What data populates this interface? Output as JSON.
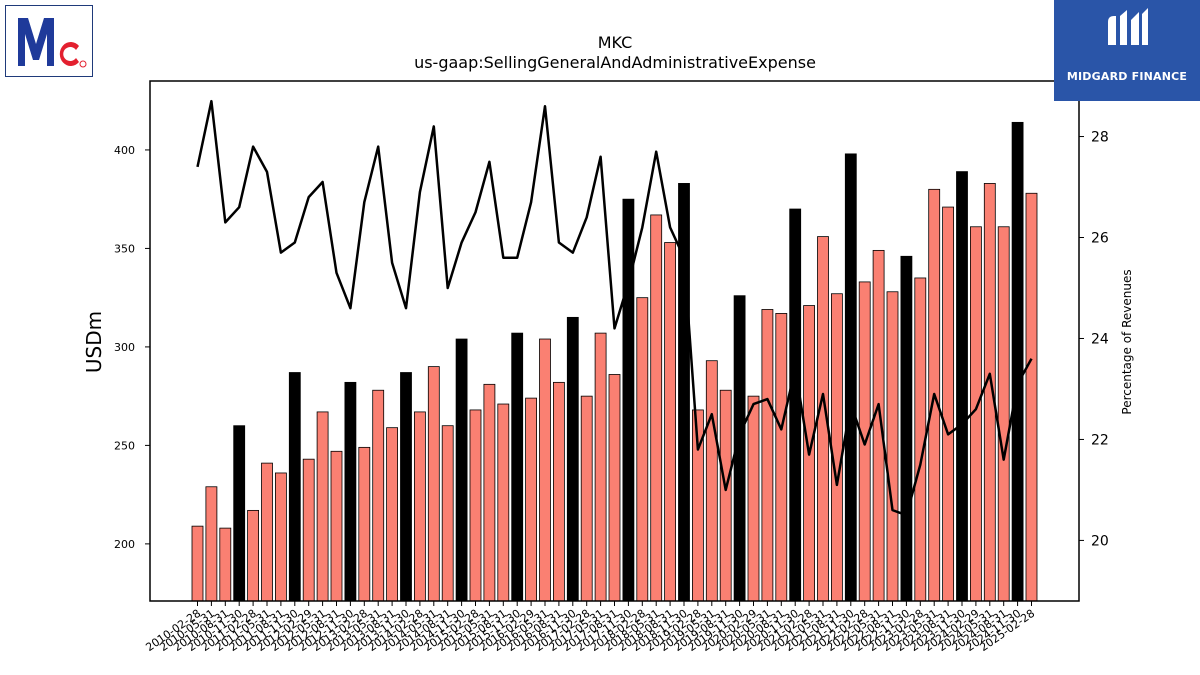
{
  "header": {
    "title": "MKC",
    "subtitle": "us-gaap:SellingGeneralAndAdministrativeExpense"
  },
  "branding": {
    "left_logo": "McCormick logo",
    "right_logo": "Midgard Finance logo",
    "right_name": "MIDGARD FINANCE"
  },
  "colors": {
    "bar_quarter": "#fa8072",
    "bar_fiscal_year": "#000000",
    "line": "#000000",
    "right_brand_bg": "#2a55a8"
  },
  "chart_data": {
    "type": "bar+line",
    "title": "MKC",
    "subtitle": "us-gaap:SellingGeneralAndAdministrativeExpense",
    "ylabel": "USDm",
    "y2label": "Percentage of Revenues",
    "ylim": [
      171,
      435
    ],
    "y2lim": [
      18.8,
      29.1
    ],
    "yticks": [
      200,
      250,
      300,
      350,
      400
    ],
    "y2ticks": [
      20,
      22,
      24,
      26,
      28
    ],
    "grid": false,
    "legend": "none",
    "categories": [
      "2010-02-28",
      "2010-05-31",
      "2010-08-31",
      "2010-11-30",
      "2011-02-28",
      "2011-05-31",
      "2011-08-31",
      "2011-11-30",
      "2012-02-29",
      "2012-05-31",
      "2012-08-31",
      "2012-11-30",
      "2013-02-28",
      "2013-05-31",
      "2013-08-31",
      "2013-11-30",
      "2014-02-28",
      "2014-05-31",
      "2014-08-31",
      "2014-11-30",
      "2015-02-28",
      "2015-05-31",
      "2015-08-31",
      "2015-11-30",
      "2016-02-29",
      "2016-05-31",
      "2016-08-31",
      "2016-11-30",
      "2017-02-28",
      "2017-05-31",
      "2017-08-31",
      "2017-11-30",
      "2018-02-28",
      "2018-05-31",
      "2018-08-31",
      "2018-11-30",
      "2019-02-28",
      "2019-05-31",
      "2019-08-31",
      "2019-11-30",
      "2020-02-29",
      "2020-05-31",
      "2020-08-31",
      "2020-11-30",
      "2021-02-28",
      "2021-05-31",
      "2021-08-31",
      "2021-11-30",
      "2022-02-28",
      "2022-05-31",
      "2022-08-31",
      "2022-11-30",
      "2023-02-28",
      "2023-05-31",
      "2023-08-31",
      "2023-11-30",
      "2024-02-29",
      "2024-05-31",
      "2024-08-31",
      "2024-11-30",
      "2025-02-28"
    ],
    "fiscal_year_flags": [
      0,
      0,
      0,
      1,
      0,
      0,
      0,
      1,
      0,
      0,
      0,
      1,
      0,
      0,
      0,
      1,
      0,
      0,
      0,
      1,
      0,
      0,
      0,
      1,
      0,
      0,
      0,
      1,
      0,
      0,
      0,
      1,
      0,
      0,
      0,
      1,
      0,
      0,
      0,
      1,
      0,
      0,
      0,
      1,
      0,
      0,
      0,
      1,
      0,
      0,
      0,
      1,
      0,
      0,
      0,
      1,
      0,
      0,
      0,
      1,
      0
    ],
    "series": [
      {
        "axis": "left",
        "kind": "bar",
        "values": [
          209,
          229,
          208,
          260,
          217,
          241,
          236,
          287,
          243,
          267,
          247,
          282,
          249,
          278,
          259,
          287,
          267,
          290,
          260,
          304,
          268,
          281,
          271,
          307,
          274,
          304,
          282,
          315,
          275,
          307,
          286,
          375,
          325,
          367,
          353,
          383,
          268,
          293,
          278,
          326,
          275,
          319,
          317,
          370,
          321,
          356,
          327,
          398,
          333,
          349,
          328,
          346,
          335,
          380,
          371,
          389,
          361,
          383,
          361,
          414,
          378
        ]
      },
      {
        "axis": "right",
        "kind": "line",
        "values": [
          27.4,
          28.7,
          26.3,
          26.6,
          27.8,
          27.3,
          25.7,
          25.9,
          26.8,
          27.1,
          25.3,
          24.6,
          26.7,
          27.8,
          25.5,
          24.6,
          26.9,
          28.2,
          25.0,
          25.9,
          26.5,
          27.5,
          25.6,
          25.6,
          26.7,
          28.6,
          25.9,
          25.7,
          26.4,
          27.6,
          24.2,
          25.1,
          26.2,
          27.7,
          26.2,
          25.6,
          21.8,
          22.5,
          21.0,
          22.1,
          22.7,
          22.8,
          22.2,
          23.4,
          21.7,
          22.9,
          21.1,
          22.7,
          21.9,
          22.7,
          20.6,
          20.5,
          21.5,
          22.9,
          22.1,
          22.3,
          22.6,
          23.3,
          21.6,
          23.1,
          23.6
        ]
      }
    ]
  }
}
